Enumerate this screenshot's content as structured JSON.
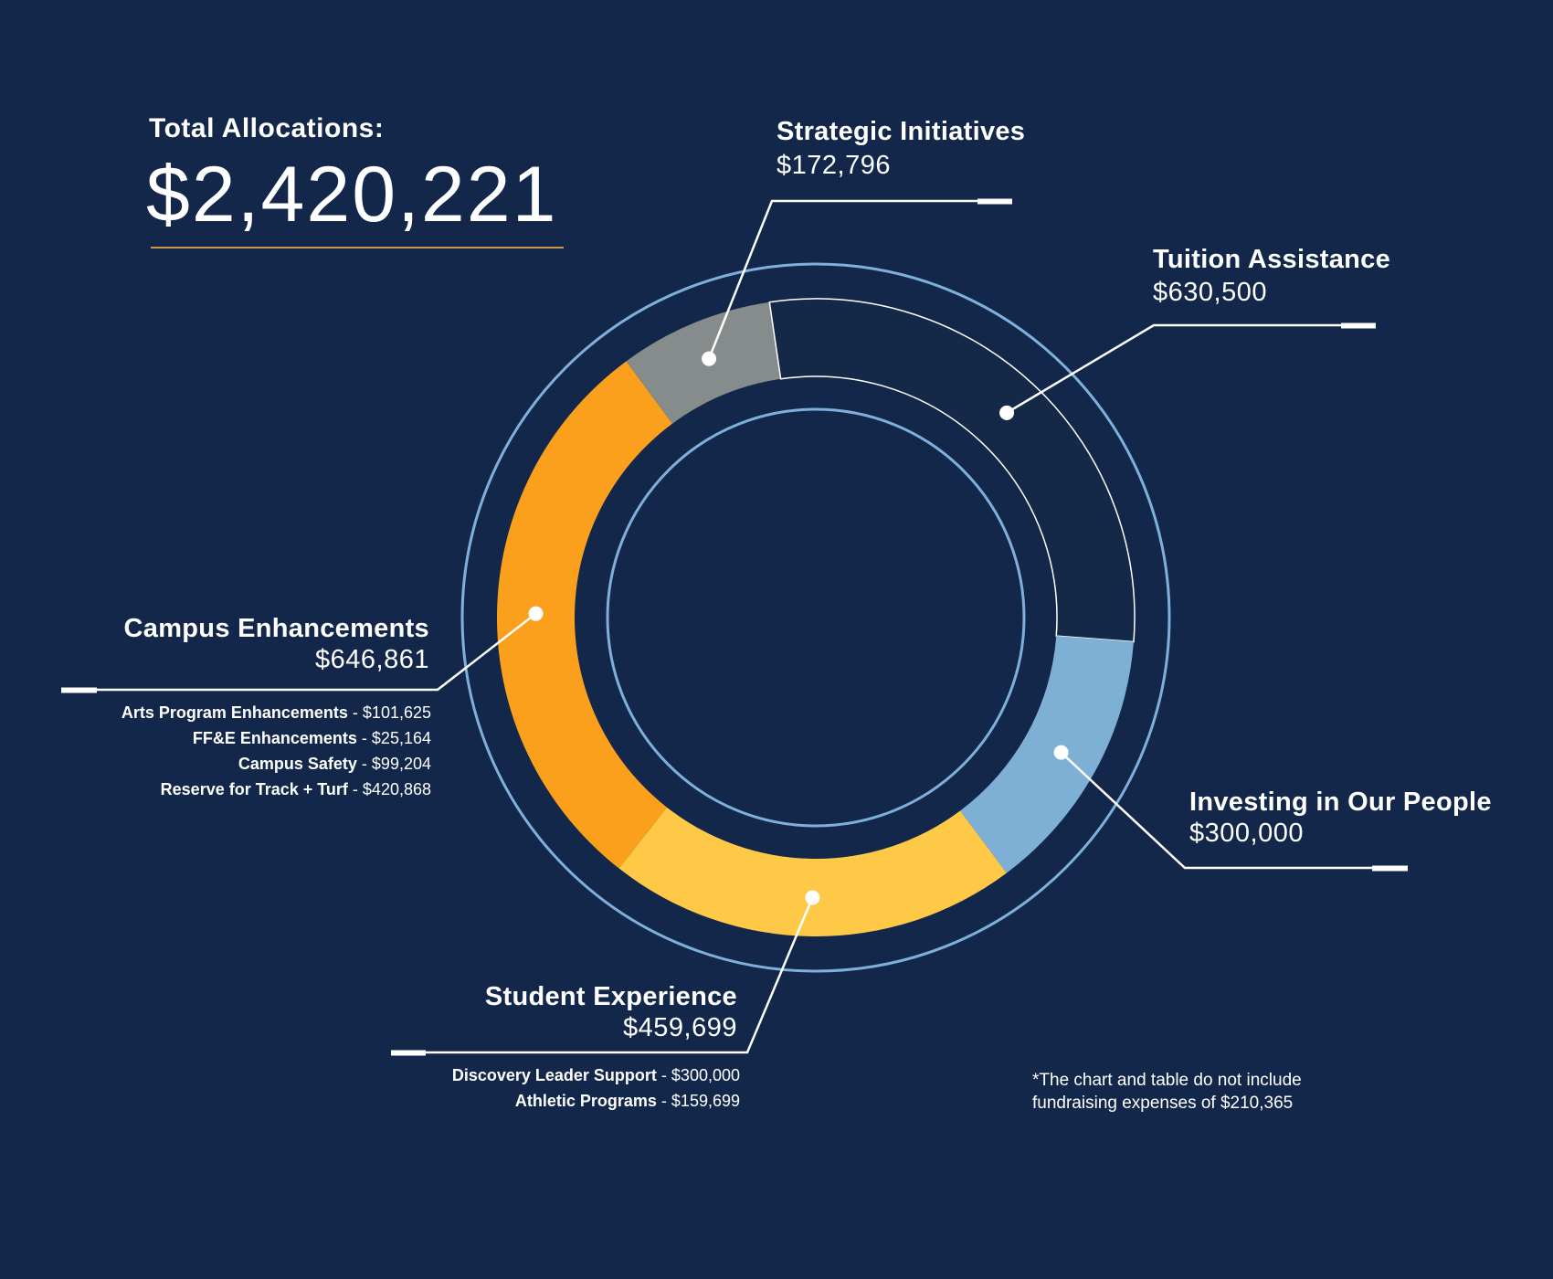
{
  "total": {
    "label": "Total Allocations:",
    "value": "$2,420,221"
  },
  "colors": {
    "background": "#13274a",
    "ring": "#7fb0dc",
    "strategic": "#868b8b",
    "tuition": "#142848",
    "investing": "#7eb0d6",
    "student": "#fec947",
    "campus": "#fba01d",
    "leader": "#ffffff",
    "underline": "#c99a48"
  },
  "chart_data": {
    "type": "pie",
    "categories": [
      "Strategic Initiatives",
      "Tuition Assistance",
      "Investing in Our People",
      "Student Experience",
      "Campus Enhancements"
    ],
    "values": [
      172796,
      630500,
      300000,
      459699,
      646861
    ],
    "total": 2420221
  },
  "labels": {
    "strategic": {
      "name": "Strategic Initiatives",
      "amount": "$172,796"
    },
    "tuition": {
      "name": "Tuition Assistance",
      "amount": "$630,500"
    },
    "investing": {
      "name": "Investing in Our People",
      "amount": "$300,000"
    },
    "student": {
      "name": "Student Experience",
      "amount": "$459,699",
      "items": [
        {
          "name": "Discovery Leader Support",
          "amount": "$300,000"
        },
        {
          "name": "Athletic Programs",
          "amount": "$159,699"
        }
      ]
    },
    "campus": {
      "name": "Campus Enhancements",
      "amount": "$646,861",
      "items": [
        {
          "name": "Arts Program Enhancements",
          "amount": "$101,625"
        },
        {
          "name": "FF&E Enhancements",
          "amount": "$25,164"
        },
        {
          "name": "Campus Safety",
          "amount": "$99,204"
        },
        {
          "name": "Reserve for Track + Turf",
          "amount": "$420,868"
        }
      ]
    }
  },
  "footnote": {
    "line1": "*The chart and table do not include",
    "line2": "fundraising expenses of $210,365"
  }
}
